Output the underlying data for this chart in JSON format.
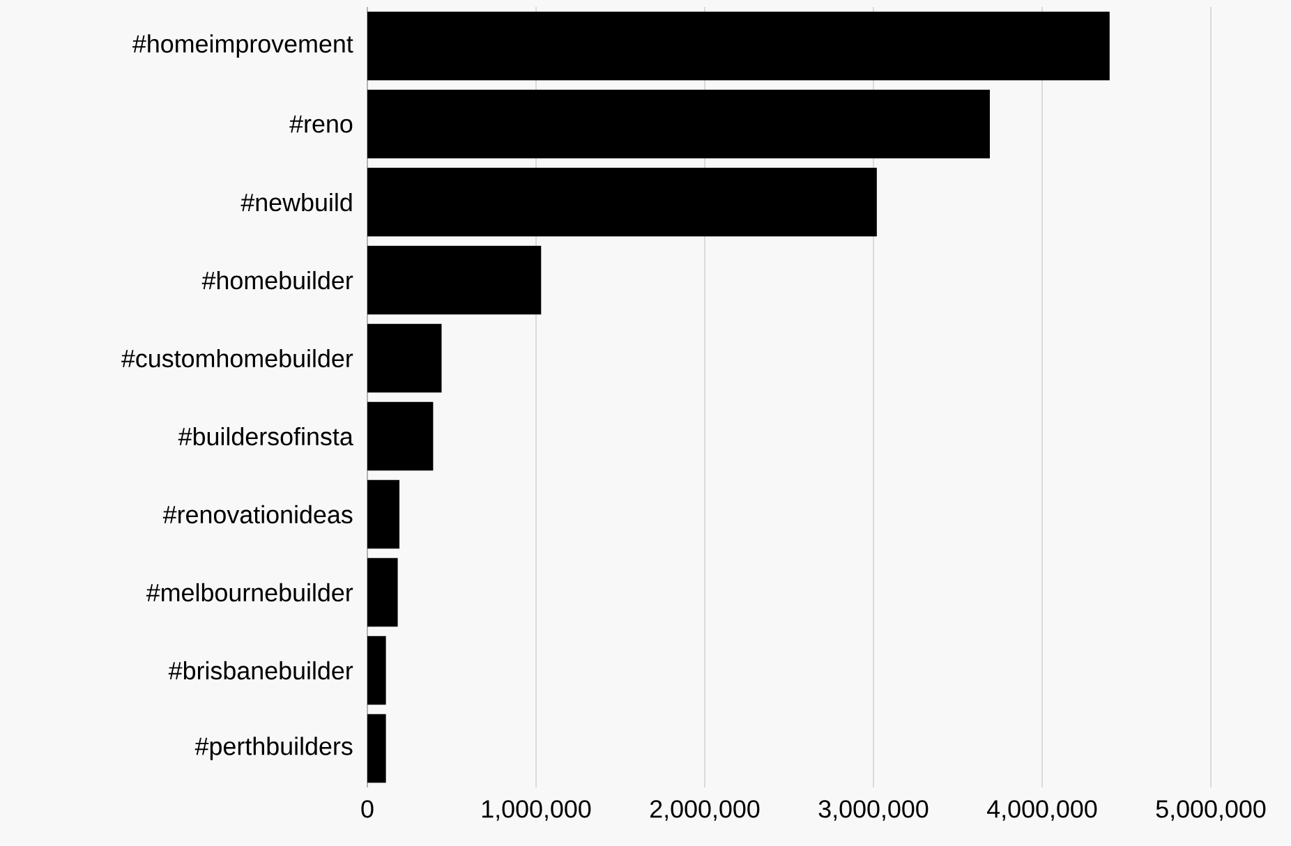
{
  "chart_data": {
    "type": "bar",
    "orientation": "horizontal",
    "categories": [
      "#homeimprovement",
      "#reno",
      "#newbuild",
      "#homebuilder",
      "#customhomebuilder",
      "#buildersofinsta",
      "#renovationideas",
      "#melbournebuilder",
      "#brisbanebuilder",
      "#perthbuilders"
    ],
    "values": [
      4400000,
      3690000,
      3020000,
      1030000,
      440000,
      390000,
      190000,
      180000,
      110000,
      110000
    ],
    "color": "#000000",
    "xlim": [
      0,
      5000000
    ],
    "xticks": [
      0,
      {
        "value": 1000000,
        "label": "1,000,000"
      },
      {
        "value": 2000000,
        "label": "2,000,000"
      },
      {
        "value": 3000000,
        "label": "3,000,000"
      },
      {
        "value": 4000000,
        "label": "4,000,000"
      },
      {
        "value": 5000000,
        "label": "5,000,000"
      }
    ],
    "grid": "x"
  }
}
